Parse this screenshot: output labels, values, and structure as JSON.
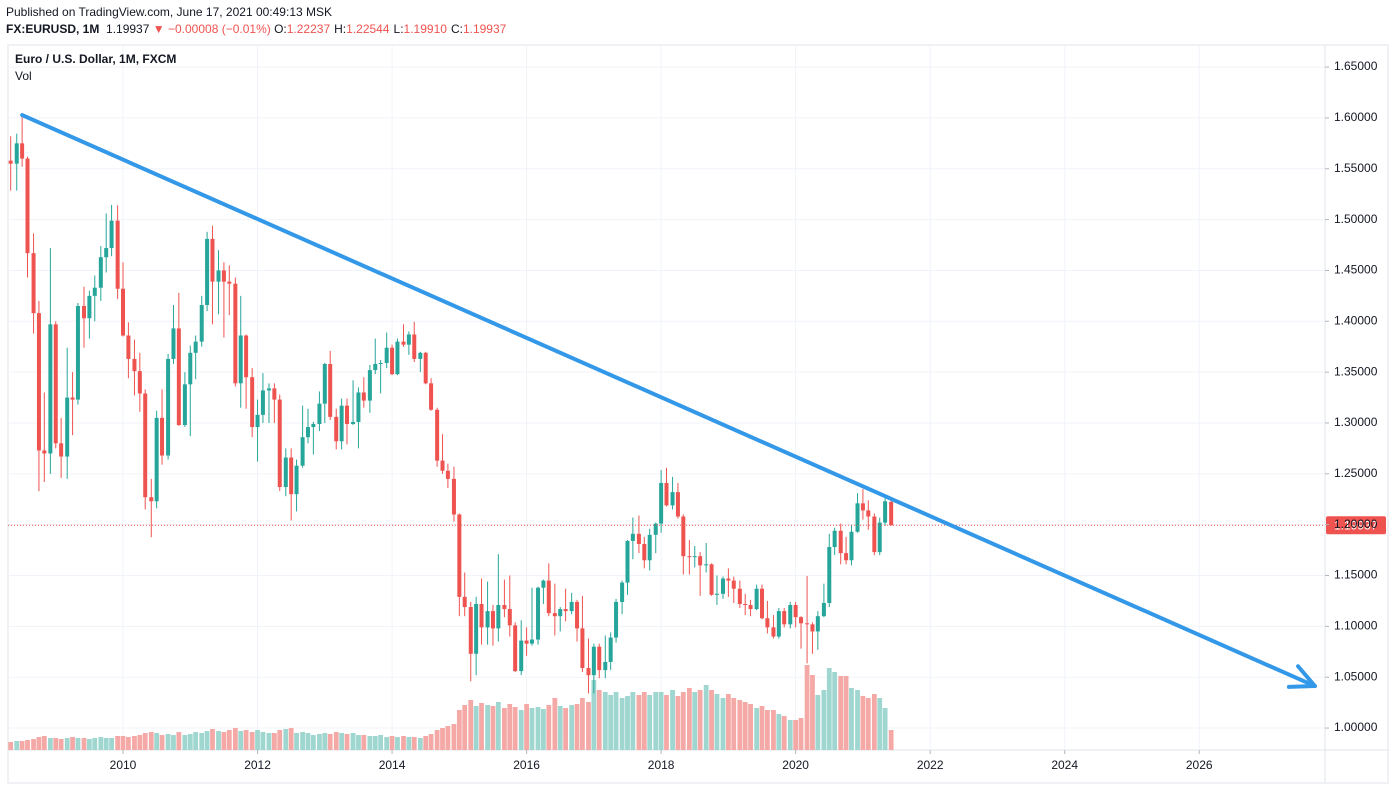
{
  "header": {
    "published": "Published on TradingView.com, June 17, 2021 00:49:13 MSK",
    "symbol": "FX:EURUSD, 1M",
    "price": "1.19937",
    "change": "−0.00008 (−0.01%)",
    "ohlc": [
      {
        "label": "O:",
        "value": "1.22237"
      },
      {
        "label": "H:",
        "value": "1.22544"
      },
      {
        "label": "L:",
        "value": "1.19910"
      },
      {
        "label": "C:",
        "value": "1.19937"
      }
    ]
  },
  "chart_data": {
    "type": "candlestick",
    "title": "Euro / U.S. Dollar, 1M, FXCM",
    "volume_label": "Vol",
    "up_color": "#26a69a",
    "down_color": "#ef5350",
    "volume_up_color": "#9fd6d0",
    "volume_down_color": "#f5a9a7",
    "grid": true,
    "xlim": [
      2008.29,
      2027.87
    ],
    "xticks": [
      2010,
      2012,
      2014,
      2016,
      2018,
      2020,
      2022,
      2024,
      2026
    ],
    "ylim": [
      0.9784,
      1.6717
    ],
    "yticks": [
      {
        "value": 1.0,
        "label": "1.00000"
      },
      {
        "value": 1.05,
        "label": "1.05000"
      },
      {
        "value": 1.1,
        "label": "1.10000"
      },
      {
        "value": 1.15,
        "label": "1.15000"
      },
      {
        "value": 1.2,
        "label": "1.20000"
      },
      {
        "value": 1.25,
        "label": "1.25000"
      },
      {
        "value": 1.3,
        "label": "1.30000"
      },
      {
        "value": 1.35,
        "label": "1.35000"
      },
      {
        "value": 1.4,
        "label": "1.40000"
      },
      {
        "value": 1.45,
        "label": "1.45000"
      },
      {
        "value": 1.5,
        "label": "1.50000"
      },
      {
        "value": 1.55,
        "label": "1.55000"
      },
      {
        "value": 1.6,
        "label": "1.60000"
      },
      {
        "value": 1.65,
        "label": "1.65000"
      }
    ],
    "x": [
      2008.33,
      2008.42,
      2008.5,
      2008.58,
      2008.67,
      2008.75,
      2008.83,
      2008.92,
      2009,
      2009.08,
      2009.17,
      2009.25,
      2009.33,
      2009.42,
      2009.5,
      2009.58,
      2009.67,
      2009.75,
      2009.83,
      2009.92,
      2010,
      2010.08,
      2010.17,
      2010.25,
      2010.33,
      2010.42,
      2010.5,
      2010.58,
      2010.67,
      2010.75,
      2010.83,
      2010.92,
      2011,
      2011.08,
      2011.17,
      2011.25,
      2011.33,
      2011.42,
      2011.5,
      2011.58,
      2011.67,
      2011.75,
      2011.83,
      2011.92,
      2012,
      2012.08,
      2012.17,
      2012.25,
      2012.33,
      2012.42,
      2012.5,
      2012.58,
      2012.67,
      2012.75,
      2012.83,
      2012.92,
      2013,
      2013.08,
      2013.17,
      2013.25,
      2013.33,
      2013.42,
      2013.5,
      2013.58,
      2013.67,
      2013.75,
      2013.83,
      2013.92,
      2014,
      2014.08,
      2014.17,
      2014.25,
      2014.33,
      2014.42,
      2014.5,
      2014.58,
      2014.67,
      2014.75,
      2014.83,
      2014.92,
      2015,
      2015.08,
      2015.17,
      2015.25,
      2015.33,
      2015.42,
      2015.5,
      2015.58,
      2015.67,
      2015.75,
      2015.83,
      2015.92,
      2016,
      2016.08,
      2016.17,
      2016.25,
      2016.33,
      2016.42,
      2016.5,
      2016.58,
      2016.67,
      2016.75,
      2016.83,
      2016.92,
      2017,
      2017.08,
      2017.17,
      2017.25,
      2017.33,
      2017.42,
      2017.5,
      2017.58,
      2017.67,
      2017.75,
      2017.83,
      2017.92,
      2018,
      2018.08,
      2018.17,
      2018.25,
      2018.33,
      2018.42,
      2018.5,
      2018.58,
      2018.67,
      2018.75,
      2018.83,
      2018.92,
      2019,
      2019.08,
      2019.17,
      2019.25,
      2019.33,
      2019.42,
      2019.5,
      2019.58,
      2019.67,
      2019.75,
      2019.83,
      2019.92,
      2020,
      2020.08,
      2020.17,
      2020.25,
      2020.33,
      2020.42,
      2020.5,
      2020.58,
      2020.67,
      2020.75,
      2020.83,
      2020.92,
      2021,
      2021.08,
      2021.17,
      2021.25,
      2021.33,
      2021.42
    ],
    "open": [
      1.558,
      1.555,
      1.575,
      1.56,
      1.467,
      1.408,
      1.273,
      1.27,
      1.397,
      1.28,
      1.267,
      1.325,
      1.323,
      1.415,
      1.403,
      1.425,
      1.433,
      1.463,
      1.472,
      1.499,
      1.432,
      1.386,
      1.363,
      1.351,
      1.329,
      1.227,
      1.223,
      1.305,
      1.268,
      1.363,
      1.393,
      1.298,
      1.338,
      1.369,
      1.38,
      1.416,
      1.481,
      1.439,
      1.45,
      1.439,
      1.437,
      1.339,
      1.386,
      1.345,
      1.296,
      1.308,
      1.332,
      1.334,
      1.323,
      1.237,
      1.266,
      1.23,
      1.258,
      1.286,
      1.296,
      1.299,
      1.319,
      1.358,
      1.306,
      1.282,
      1.317,
      1.299,
      1.301,
      1.33,
      1.322,
      1.352,
      1.358,
      1.359,
      1.374,
      1.348,
      1.38,
      1.377,
      1.387,
      1.363,
      1.369,
      1.339,
      1.313,
      1.263,
      1.253,
      1.245,
      1.21,
      1.129,
      1.119,
      1.073,
      1.122,
      1.099,
      1.115,
      1.098,
      1.121,
      1.117,
      1.101,
      1.056,
      1.086,
      1.083,
      1.087,
      1.138,
      1.145,
      1.113,
      1.11,
      1.117,
      1.115,
      1.124,
      1.098,
      1.059,
      1.052,
      1.08,
      1.057,
      1.065,
      1.089,
      1.124,
      1.143,
      1.184,
      1.191,
      1.181,
      1.165,
      1.19,
      1.201,
      1.241,
      1.219,
      1.232,
      1.208,
      1.169,
      1.168,
      1.169,
      1.16,
      1.161,
      1.131,
      1.132,
      1.147,
      1.145,
      1.137,
      1.122,
      1.121,
      1.117,
      1.137,
      1.108,
      1.099,
      1.09,
      1.115,
      1.102,
      1.121,
      1.109,
      1.103,
      1.102,
      1.095,
      1.11,
      1.123,
      1.178,
      1.194,
      1.172,
      1.165,
      1.193,
      1.221,
      1.214,
      1.208,
      1.173,
      1.202,
      1.22237
    ],
    "high": [
      1.582,
      1.5845,
      1.6038,
      1.562,
      1.4865,
      1.42,
      1.33,
      1.472,
      1.4,
      1.305,
      1.374,
      1.35,
      1.418,
      1.434,
      1.43,
      1.445,
      1.474,
      1.506,
      1.5145,
      1.514,
      1.458,
      1.399,
      1.382,
      1.369,
      1.333,
      1.245,
      1.312,
      1.333,
      1.368,
      1.416,
      1.428,
      1.35,
      1.376,
      1.386,
      1.425,
      1.488,
      1.494,
      1.47,
      1.458,
      1.455,
      1.443,
      1.425,
      1.387,
      1.354,
      1.323,
      1.349,
      1.339,
      1.339,
      1.328,
      1.275,
      1.275,
      1.264,
      1.317,
      1.314,
      1.301,
      1.331,
      1.359,
      1.371,
      1.314,
      1.324,
      1.324,
      1.342,
      1.335,
      1.345,
      1.357,
      1.383,
      1.362,
      1.389,
      1.377,
      1.383,
      1.397,
      1.39,
      1.3995,
      1.37,
      1.37,
      1.344,
      1.315,
      1.289,
      1.26,
      1.257,
      1.211,
      1.153,
      1.124,
      1.129,
      1.147,
      1.144,
      1.121,
      1.171,
      1.146,
      1.15,
      1.104,
      1.106,
      1.099,
      1.138,
      1.139,
      1.146,
      1.162,
      1.142,
      1.119,
      1.137,
      1.133,
      1.126,
      1.13,
      1.088,
      1.083,
      1.083,
      1.091,
      1.094,
      1.127,
      1.145,
      1.185,
      1.207,
      1.209,
      1.188,
      1.196,
      1.202,
      1.2537,
      1.256,
      1.247,
      1.241,
      1.21,
      1.185,
      1.179,
      1.173,
      1.182,
      1.162,
      1.15,
      1.149,
      1.157,
      1.149,
      1.145,
      1.132,
      1.126,
      1.141,
      1.141,
      1.125,
      1.111,
      1.118,
      1.118,
      1.124,
      1.124,
      1.11,
      1.1495,
      1.104,
      1.115,
      1.142,
      1.191,
      1.197,
      1.201,
      1.188,
      1.2,
      1.231,
      1.235,
      1.224,
      1.211,
      1.207,
      1.227,
      1.22544
    ],
    "low": [
      1.5285,
      1.5285,
      1.552,
      1.443,
      1.388,
      1.233,
      1.242,
      1.25,
      1.275,
      1.246,
      1.245,
      1.288,
      1.318,
      1.374,
      1.383,
      1.4,
      1.42,
      1.448,
      1.464,
      1.422,
      1.385,
      1.344,
      1.327,
      1.311,
      1.215,
      1.1876,
      1.216,
      1.259,
      1.264,
      1.358,
      1.297,
      1.296,
      1.287,
      1.343,
      1.375,
      1.41,
      1.397,
      1.407,
      1.384,
      1.406,
      1.336,
      1.315,
      1.314,
      1.286,
      1.262,
      1.3,
      1.3,
      1.3,
      1.233,
      1.228,
      1.204,
      1.213,
      1.256,
      1.28,
      1.269,
      1.292,
      1.3,
      1.303,
      1.274,
      1.274,
      1.279,
      1.298,
      1.275,
      1.315,
      1.31,
      1.348,
      1.329,
      1.354,
      1.347,
      1.347,
      1.375,
      1.367,
      1.36,
      1.35,
      1.338,
      1.312,
      1.257,
      1.25,
      1.236,
      1.203,
      1.11,
      1.11,
      1.046,
      1.052,
      1.082,
      1.082,
      1.081,
      1.085,
      1.109,
      1.09,
      1.055,
      1.052,
      1.071,
      1.081,
      1.082,
      1.122,
      1.11,
      1.091,
      1.095,
      1.105,
      1.112,
      1.085,
      1.055,
      1.034,
      1.034,
      1.049,
      1.049,
      1.057,
      1.084,
      1.112,
      1.131,
      1.166,
      1.172,
      1.157,
      1.155,
      1.172,
      1.192,
      1.218,
      1.215,
      1.206,
      1.151,
      1.151,
      1.158,
      1.13,
      1.153,
      1.13,
      1.121,
      1.127,
      1.129,
      1.123,
      1.118,
      1.111,
      1.11,
      1.116,
      1.107,
      1.093,
      1.088,
      1.088,
      1.099,
      1.098,
      1.099,
      1.078,
      1.0636,
      1.073,
      1.077,
      1.109,
      1.119,
      1.17,
      1.161,
      1.161,
      1.16,
      1.192,
      1.205,
      1.195,
      1.17,
      1.17,
      1.199,
      1.1991
    ],
    "close": [
      1.555,
      1.575,
      1.56,
      1.467,
      1.408,
      1.273,
      1.27,
      1.397,
      1.28,
      1.267,
      1.325,
      1.323,
      1.415,
      1.403,
      1.425,
      1.433,
      1.463,
      1.472,
      1.499,
      1.432,
      1.386,
      1.363,
      1.351,
      1.329,
      1.227,
      1.223,
      1.305,
      1.268,
      1.363,
      1.393,
      1.298,
      1.338,
      1.369,
      1.38,
      1.416,
      1.481,
      1.439,
      1.45,
      1.439,
      1.437,
      1.339,
      1.386,
      1.345,
      1.296,
      1.308,
      1.332,
      1.334,
      1.323,
      1.237,
      1.266,
      1.23,
      1.258,
      1.286,
      1.296,
      1.299,
      1.319,
      1.358,
      1.306,
      1.282,
      1.317,
      1.299,
      1.301,
      1.33,
      1.322,
      1.352,
      1.358,
      1.359,
      1.374,
      1.348,
      1.38,
      1.377,
      1.387,
      1.363,
      1.369,
      1.339,
      1.313,
      1.263,
      1.253,
      1.245,
      1.21,
      1.129,
      1.119,
      1.073,
      1.122,
      1.099,
      1.115,
      1.098,
      1.121,
      1.117,
      1.101,
      1.056,
      1.086,
      1.083,
      1.087,
      1.138,
      1.145,
      1.113,
      1.11,
      1.117,
      1.115,
      1.124,
      1.098,
      1.059,
      1.052,
      1.08,
      1.057,
      1.065,
      1.089,
      1.124,
      1.143,
      1.184,
      1.191,
      1.181,
      1.165,
      1.19,
      1.201,
      1.241,
      1.219,
      1.232,
      1.208,
      1.169,
      1.168,
      1.169,
      1.16,
      1.161,
      1.131,
      1.132,
      1.147,
      1.145,
      1.137,
      1.122,
      1.121,
      1.117,
      1.137,
      1.108,
      1.099,
      1.09,
      1.115,
      1.102,
      1.121,
      1.109,
      1.103,
      1.102,
      1.095,
      1.11,
      1.123,
      1.178,
      1.194,
      1.172,
      1.165,
      1.193,
      1.221,
      1.214,
      1.208,
      1.173,
      1.202,
      1.223,
      1.19937
    ],
    "volume": [
      8,
      9,
      9,
      10,
      11,
      13,
      14,
      12,
      12,
      11,
      12,
      13,
      12,
      12,
      11,
      12,
      13,
      12,
      12,
      14,
      14,
      13,
      14,
      15,
      17,
      18,
      17,
      15,
      16,
      15,
      18,
      15,
      16,
      18,
      17,
      19,
      21,
      19,
      18,
      20,
      22,
      19,
      20,
      18,
      20,
      18,
      17,
      17,
      20,
      21,
      22,
      17,
      18,
      17,
      15,
      16,
      17,
      16,
      18,
      17,
      16,
      17,
      15,
      15,
      14,
      14,
      15,
      13,
      14,
      13,
      14,
      13,
      13,
      12,
      14,
      16,
      20,
      22,
      24,
      26,
      40,
      45,
      50,
      44,
      47,
      45,
      44,
      48,
      42,
      46,
      43,
      40,
      46,
      42,
      43,
      41,
      45,
      52,
      44,
      42,
      45,
      46,
      52,
      48,
      70,
      60,
      58,
      55,
      58,
      52,
      54,
      58,
      55,
      58,
      55,
      58,
      58,
      55,
      60,
      54,
      58,
      62,
      58,
      60,
      65,
      60,
      56,
      52,
      56,
      52,
      50,
      48,
      46,
      42,
      44,
      40,
      40,
      36,
      34,
      30,
      30,
      32,
      85,
      75,
      55,
      60,
      82,
      78,
      74,
      74,
      62,
      60,
      54,
      52,
      56,
      52,
      42,
      20
    ],
    "last_price": 1.19937,
    "last_price_color": "#ef5350",
    "trendline": {
      "x": [
        2008.5,
        2027.72
      ],
      "y": [
        1.6028,
        1.0413
      ],
      "color": "#3398e8"
    }
  }
}
